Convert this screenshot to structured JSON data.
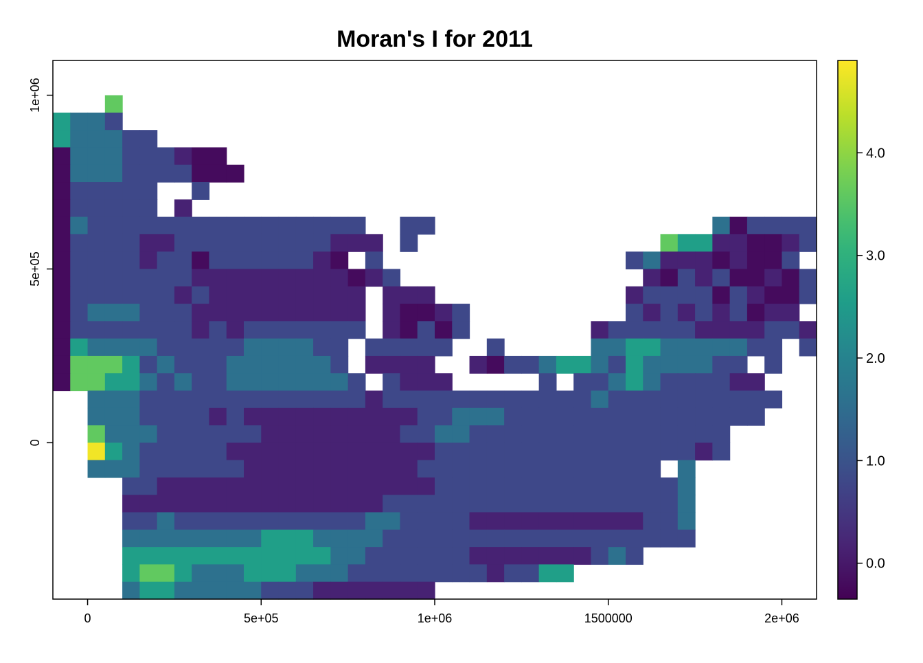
{
  "chart_data": {
    "type": "heatmap",
    "title": "Moran's I for 2011",
    "xlabel": "",
    "ylabel": "",
    "x_ticks": [
      {
        "value": 0,
        "label": "0"
      },
      {
        "value": 500000,
        "label": "5e+05"
      },
      {
        "value": 1000000,
        "label": "1e+06"
      },
      {
        "value": 1500000,
        "label": "1500000"
      },
      {
        "value": 2000000,
        "label": "2e+06"
      }
    ],
    "y_ticks": [
      {
        "value": 0,
        "label": "0"
      },
      {
        "value": 500000,
        "label": "5e+05"
      },
      {
        "value": 1000000,
        "label": "1e+06"
      }
    ],
    "xlim": [
      -100000,
      2100000
    ],
    "ylim": [
      -450000,
      1100000
    ],
    "cell_size": 50000,
    "x_origin": -100000,
    "y_top": 1100000,
    "value_range": [
      -0.35,
      4.9
    ],
    "colorbar": {
      "ticks": [
        {
          "value": 0.0,
          "label": "0.0"
        },
        {
          "value": 1.0,
          "label": "1.0"
        },
        {
          "value": 2.0,
          "label": "2.0"
        },
        {
          "value": 3.0,
          "label": "3.0"
        },
        {
          "value": 4.0,
          "label": "4.0"
        }
      ]
    },
    "colormap": [
      "#440154",
      "#482878",
      "#3e4989",
      "#31688e",
      "#26828e",
      "#1f9e89",
      "#35b779",
      "#6ece58",
      "#b5de2b",
      "#fde725"
    ],
    "legend_position": "right",
    "grid": false,
    "rows": [
      "............................................",
      "...............................................0-.",
      "...4.............................................",
      "3221.............................................",
      "322211...........................................",
      "-2221110--.......................................",
      "-2221111---......................................",
      "-11111..1.......................................",
      "-11111.0.......................................",
      "-21111111111111111..11................2-1111.",
      "-111100111111111000.1..............43300--01.",
      "-1111011-1111110-.1..............12000-0--1.",
      "-1111111000000000-01..............0-101--0-1",
      "-11111101000000000.000...........01111-10--1",
      "-12221110000000000.0--01.........1010101-00.",
      "-11111110101111111.0-1-1.......01111100001101",
      "-3222211111222211.11111..1.....22332222211.1.",
      "-4443121112222221.0000..0-11233213222211.1.",
      "-44332121122222221.1000.....1.11232111100.",
      "..2221111111111111011111111111121111111111.",
      "..222111101000000000011222111111111111111.",
      "..4222111111000000001122111111111111111.",
      "..5321111100000000000011111111111111101.",
      "..222111111000000000011111111111111.2.",
      "....110000000000000000111111111111112",
      "....000000000000000111111111111111112",
      "....112111111111112211110000000000112",
      "....222222223332222111111111111111111",
      "....333333333333221111110000000121.",
      "....34432223332221111111101133..",
      "....233222221110000000.........",
      "....1221101100.................",
      "............1..................."
    ]
  }
}
